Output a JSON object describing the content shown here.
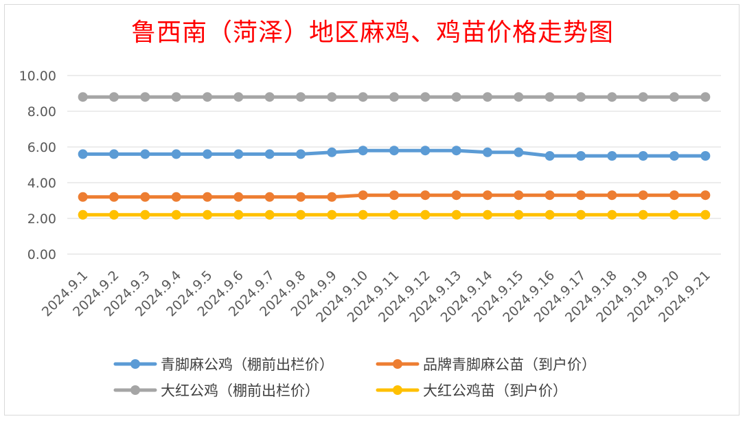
{
  "chart_data": {
    "type": "line",
    "title": "鲁西南（菏泽）地区麻鸡、鸡苗价格走势图",
    "xlabel": "",
    "ylabel": "",
    "ylim": [
      0,
      10
    ],
    "yticks": [
      "0.00",
      "2.00",
      "4.00",
      "6.00",
      "8.00",
      "10.00"
    ],
    "grid": true,
    "legend_position": "bottom",
    "categories": [
      "2024.9.1",
      "2024.9.2",
      "2024.9.3",
      "2024.9.4",
      "2024.9.5",
      "2024.9.6",
      "2024.9.7",
      "2024.9.8",
      "2024.9.9",
      "2024.9.10",
      "2024.9.11",
      "2024.9.12",
      "2024.9.13",
      "2024.9.14",
      "2024.9.15",
      "2024.9.16",
      "2024.9.17",
      "2024.9.18",
      "2024.9.19",
      "2024.9.20",
      "2024.9.21"
    ],
    "series": [
      {
        "name": "青脚麻公鸡（棚前出栏价）",
        "color": "#5b9bd5",
        "values": [
          5.6,
          5.6,
          5.6,
          5.6,
          5.6,
          5.6,
          5.6,
          5.6,
          5.7,
          5.8,
          5.8,
          5.8,
          5.8,
          5.7,
          5.7,
          5.5,
          5.5,
          5.5,
          5.5,
          5.5,
          5.5
        ]
      },
      {
        "name": "品牌青脚麻公苗（到户价）",
        "color": "#ed7d31",
        "values": [
          3.2,
          3.2,
          3.2,
          3.2,
          3.2,
          3.2,
          3.2,
          3.2,
          3.2,
          3.3,
          3.3,
          3.3,
          3.3,
          3.3,
          3.3,
          3.3,
          3.3,
          3.3,
          3.3,
          3.3,
          3.3
        ]
      },
      {
        "name": "大红公鸡（棚前出栏价）",
        "color": "#a5a5a5",
        "values": [
          8.8,
          8.8,
          8.8,
          8.8,
          8.8,
          8.8,
          8.8,
          8.8,
          8.8,
          8.8,
          8.8,
          8.8,
          8.8,
          8.8,
          8.8,
          8.8,
          8.8,
          8.8,
          8.8,
          8.8,
          8.8
        ]
      },
      {
        "name": "大红公鸡苗（到户价）",
        "color": "#ffc000",
        "values": [
          2.2,
          2.2,
          2.2,
          2.2,
          2.2,
          2.2,
          2.2,
          2.2,
          2.2,
          2.2,
          2.2,
          2.2,
          2.2,
          2.2,
          2.2,
          2.2,
          2.2,
          2.2,
          2.2,
          2.2,
          2.2
        ]
      }
    ]
  }
}
